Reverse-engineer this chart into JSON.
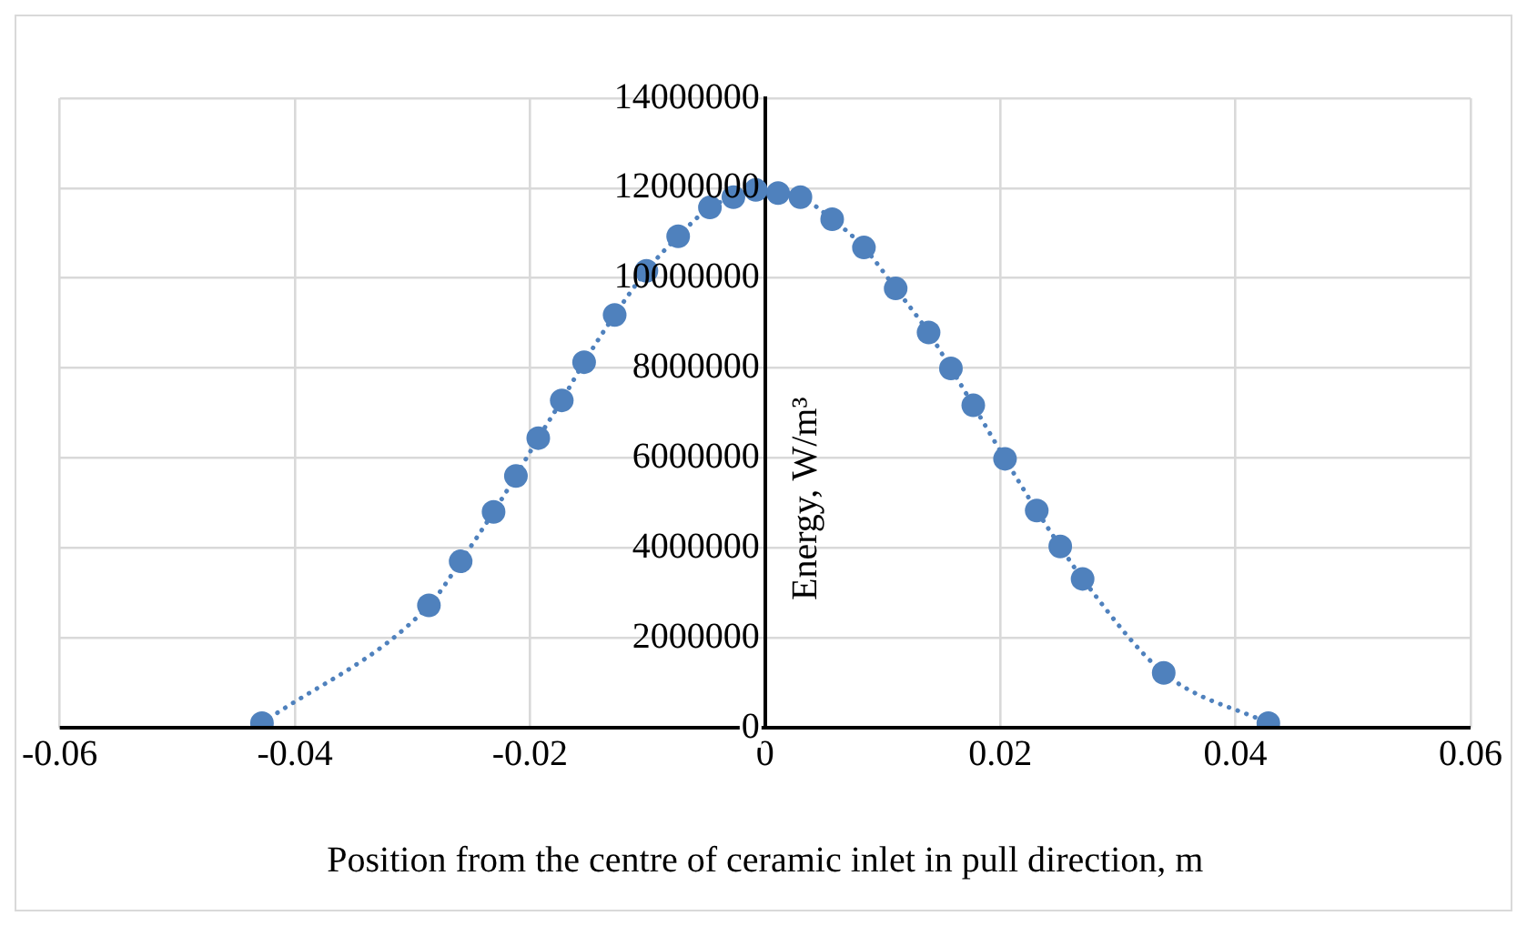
{
  "chart_data": {
    "type": "line",
    "xlabel": "Position from the centre of ceramic inlet in pull direction, m",
    "ylabel": "Energy, W/m³",
    "x": [
      -0.0428,
      -0.0286,
      -0.0259,
      -0.0231,
      -0.0212,
      -0.0193,
      -0.0173,
      -0.0154,
      -0.0128,
      -0.0101,
      -0.0074,
      -0.0047,
      -0.0027,
      -0.0008,
      0.0011,
      0.003,
      0.0057,
      0.0084,
      0.0111,
      0.0139,
      0.0158,
      0.0177,
      0.0204,
      0.0231,
      0.0251,
      0.027,
      0.0339,
      0.0428
    ],
    "series": [
      {
        "color": "#4f81bd",
        "values": [
          100000,
          2720000,
          3700000,
          4800000,
          5600000,
          6440000,
          7280000,
          8130000,
          9180000,
          10160000,
          10930000,
          11570000,
          11800000,
          11960000,
          11890000,
          11800000,
          11310000,
          10680000,
          9770000,
          8790000,
          7990000,
          7170000,
          5980000,
          4830000,
          4030000,
          3310000,
          1220000,
          100000
        ]
      }
    ],
    "xlim": [
      -0.06,
      0.06
    ],
    "xticks": [
      -0.06,
      -0.04,
      -0.02,
      0,
      0.02,
      0.04,
      0.06
    ],
    "ylim": [
      0,
      14000000
    ],
    "yticks": [
      0,
      2000000,
      4000000,
      6000000,
      8000000,
      10000000,
      12000000,
      14000000
    ],
    "grid": true,
    "legend": false,
    "marker": "circle",
    "line_style": "dotted"
  }
}
